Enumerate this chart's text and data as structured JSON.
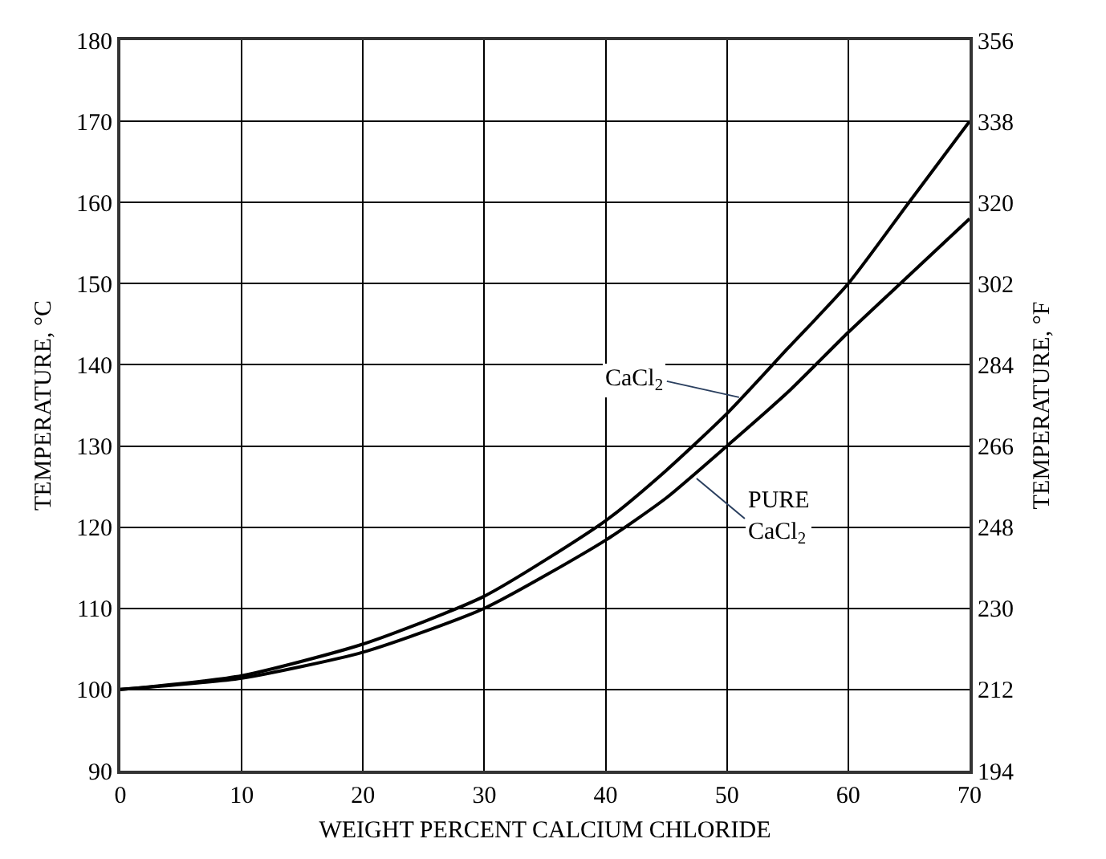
{
  "chart_data": {
    "type": "line",
    "xlabel": "WEIGHT PERCENT CALCIUM CHLORIDE",
    "ylabel": "TEMPERATURE, °C",
    "y2label": "TEMPERATURE, °F",
    "x": [
      0,
      10,
      20,
      30,
      40,
      45,
      50,
      55,
      60,
      65,
      70
    ],
    "series": [
      {
        "color": "#000000",
        "values": [
          100,
          101.7,
          105.6,
          111.5,
          120.8,
          127,
          134,
          142,
          150,
          160,
          170
        ]
      },
      {
        "color": "#000000",
        "values": [
          100,
          101.4,
          104.6,
          110,
          118.4,
          123.6,
          130,
          136.6,
          144,
          151,
          158
        ]
      }
    ],
    "xlim": [
      0,
      70
    ],
    "xticks": [
      0,
      10,
      20,
      30,
      40,
      50,
      60,
      70
    ],
    "ylim": [
      90,
      180
    ],
    "yticks": [
      90,
      100,
      110,
      120,
      130,
      140,
      150,
      160,
      170,
      180
    ],
    "y2lim": [
      194,
      356
    ],
    "y2ticks": [
      194,
      212,
      230,
      248,
      266,
      284,
      302,
      320,
      338,
      356
    ],
    "grid": true,
    "legend": false,
    "marker": "none",
    "line_style": "solid",
    "annotations": [
      {
        "text": "CaCl$_{2}$",
        "x": 51,
        "y": 136
      },
      {
        "text": "PURE\nCaCl$_{2}$",
        "x": 47.5,
        "y": 126
      }
    ]
  }
}
